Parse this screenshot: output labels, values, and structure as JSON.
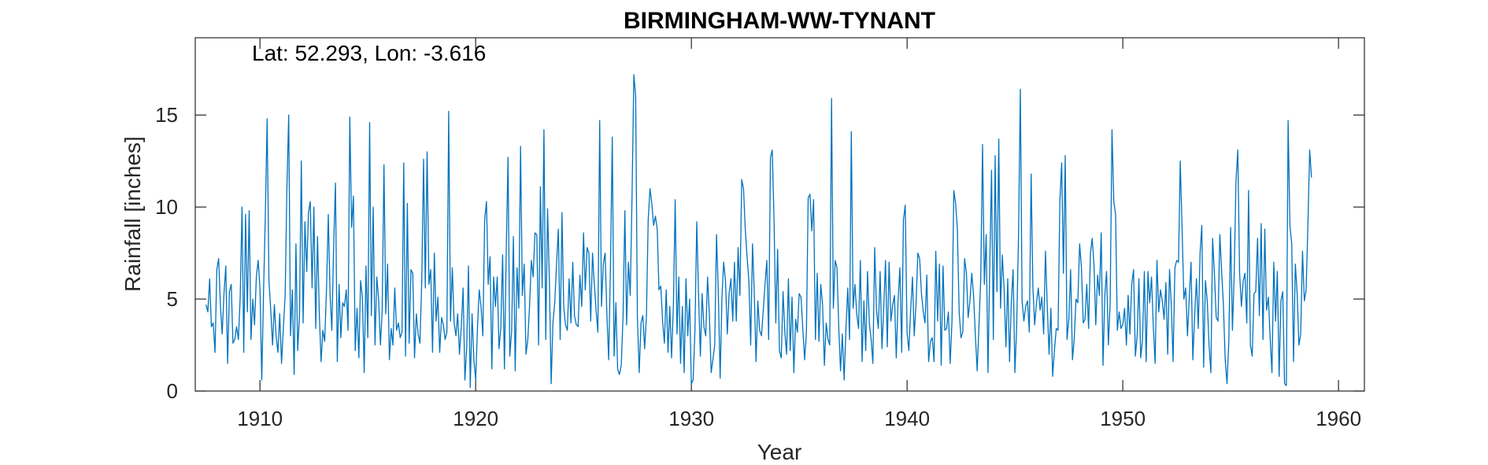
{
  "chart_data": {
    "type": "line",
    "title": "BIRMINGHAM-WW-TYNANT",
    "annotation": "Lat: 52.293, Lon: -3.616",
    "xlabel": "Year",
    "ylabel": "Rainfall [inches]",
    "xlim": [
      1907.0,
      1961.2
    ],
    "ylim": [
      0,
      19.2
    ],
    "x_ticks": [
      1910,
      1920,
      1930,
      1940,
      1950,
      1960
    ],
    "y_ticks": [
      0,
      5,
      10,
      15
    ],
    "grid": false,
    "line_color": "#0072BD",
    "series": [
      {
        "x_start": 1907.5,
        "x_step": 0.08333,
        "values": [
          4.7,
          4.3,
          6.1,
          3.5,
          3.7,
          2.1,
          6.6,
          7.2,
          4.6,
          3.1,
          5.3,
          6.8,
          1.5,
          5.4,
          5.8,
          2.6,
          2.8,
          3.5,
          2.8,
          5.1,
          10.0,
          2.1,
          9.6,
          4.3,
          9.8,
          2.8,
          5.0,
          3.6,
          6.2,
          7.1,
          5.6,
          0.6,
          5.5,
          9.5,
          14.8,
          6.0,
          4.4,
          2.5,
          4.7,
          3.0,
          2.1,
          4.2,
          1.5,
          3.4,
          5.2,
          11.0,
          15.0,
          3.0,
          5.5,
          0.9,
          8.0,
          2.2,
          4.1,
          12.5,
          3.7,
          9.2,
          6.5,
          9.7,
          10.3,
          5.6,
          10.0,
          3.4,
          8.4,
          4.3,
          1.6,
          3.3,
          2.7,
          5.5,
          9.6,
          5.3,
          3.3,
          7.9,
          11.3,
          1.6,
          5.8,
          2.9,
          4.8,
          4.6,
          5.5,
          3.3,
          14.9,
          8.9,
          10.6,
          2.2,
          4.5,
          1.8,
          6.0,
          5.1,
          1.0,
          6.8,
          2.9,
          14.6,
          4.1,
          10.0,
          2.5,
          6.2,
          5.0,
          2.5,
          4.3,
          12.3,
          4.2,
          6.9,
          1.7,
          3.4,
          2.5,
          5.6,
          3.3,
          3.7,
          2.9,
          3.2,
          12.4,
          1.9,
          10.2,
          2.6,
          6.6,
          6.4,
          1.8,
          4.2,
          3.1,
          2.6,
          6.0,
          12.6,
          5.6,
          13.0,
          5.8,
          6.6,
          2.1,
          7.5,
          3.8,
          5.1,
          2.1,
          4.0,
          3.6,
          2.8,
          3.2,
          15.2,
          3.8,
          6.7,
          3.7,
          3.0,
          4.2,
          2.0,
          3.5,
          5.6,
          0.6,
          2.4,
          6.8,
          0.2,
          4.2,
          1.7,
          0.6,
          3.5,
          5.5,
          4.6,
          3.0,
          9.3,
          10.3,
          5.8,
          7.3,
          1.2,
          6.2,
          4.6,
          6.2,
          2.3,
          3.4,
          7.4,
          1.2,
          7.6,
          12.7,
          1.9,
          3.2,
          8.4,
          1.1,
          6.7,
          4.5,
          13.3,
          5.2,
          6.9,
          2.0,
          2.8,
          4.7,
          7.1,
          6.2,
          8.6,
          8.5,
          2.5,
          11.1,
          5.6,
          14.2,
          2.8,
          9.9,
          6.0,
          0.4,
          3.7,
          4.8,
          6.9,
          8.8,
          2.8,
          9.7,
          4.6,
          3.6,
          3.3,
          6.1,
          3.7,
          7.0,
          4.1,
          3.6,
          3.5,
          6.3,
          4.6,
          8.6,
          5.5,
          7.8,
          7.5,
          3.8,
          7.5,
          5.8,
          4.4,
          3.2,
          14.7,
          4.6,
          6.9,
          7.5,
          4.2,
          1.7,
          6.8,
          13.8,
          1.9,
          4.8,
          1.2,
          0.9,
          1.4,
          4.1,
          9.8,
          3.6,
          7.0,
          5.2,
          10.6,
          17.2,
          16.0,
          4.0,
          1.0,
          3.7,
          4.1,
          2.3,
          4.1,
          9.3,
          11.0,
          10.2,
          9.0,
          9.5,
          8.8,
          5.5,
          5.7,
          3.8,
          2.6,
          5.5,
          2.1,
          4.6,
          1.8,
          4.6,
          10.4,
          3.1,
          6.2,
          1.5,
          4.6,
          1.0,
          6.1,
          3.0,
          5.0,
          0.4,
          0.6,
          3.3,
          9.2,
          5.2,
          1.9,
          5.3,
          3.5,
          3.0,
          6.2,
          4.2,
          1.0,
          1.7,
          2.5,
          8.5,
          5.3,
          0.7,
          5.1,
          7.0,
          6.0,
          3.1,
          5.3,
          6.1,
          3.8,
          7.0,
          3.8,
          7.8,
          5.2,
          11.5,
          11.0,
          8.8,
          7.3,
          6.0,
          2.5,
          8.0,
          5.3,
          1.6,
          4.9,
          3.3,
          3.0,
          4.4,
          5.8,
          7.1,
          2.8,
          12.7,
          13.1,
          9.2,
          3.7,
          7.7,
          2.2,
          1.8,
          5.4,
          3.2,
          2.0,
          6.1,
          2.2,
          5.1,
          1.0,
          3.9,
          3.2,
          5.3,
          5.1,
          3.4,
          1.7,
          3.2,
          10.5,
          10.7,
          8.7,
          10.4,
          2.8,
          6.4,
          2.7,
          5.8,
          4.7,
          1.4,
          3.7,
          2.8,
          2.5,
          15.9,
          4.5,
          7.1,
          6.7,
          3.4,
          1.1,
          3.1,
          0.6,
          3.4,
          5.6,
          2.8,
          14.1,
          4.5,
          5.8,
          4.2,
          3.4,
          7.1,
          1.6,
          4.9,
          2.2,
          6.5,
          3.7,
          2.8,
          1.5,
          7.8,
          4.4,
          3.4,
          6.5,
          2.3,
          4.4,
          7.1,
          2.4,
          7.0,
          3.8,
          4.7,
          5.2,
          1.8,
          4.9,
          6.7,
          2.1,
          9.3,
          10.1,
          3.2,
          2.2,
          4.4,
          6.2,
          3.0,
          4.7,
          7.5,
          7.2,
          5.3,
          4.3,
          3.7,
          6.3,
          1.6,
          2.7,
          2.9,
          1.6,
          7.6,
          3.8,
          6.9,
          1.4,
          6.8,
          3.3,
          3.4,
          4.3,
          1.5,
          3.8,
          10.9,
          10.2,
          8.8,
          4.3,
          2.9,
          3.2,
          7.2,
          6.4,
          4.0,
          4.9,
          6.4,
          5.2,
          3.0,
          1.1,
          3.5,
          6.1,
          13.4,
          5.8,
          8.5,
          1.0,
          6.6,
          12.0,
          2.8,
          12.8,
          5.4,
          13.7,
          4.5,
          7.4,
          5.5,
          2.4,
          6.1,
          1.6,
          4.8,
          6.6,
          1.0,
          3.6,
          8.5,
          16.4,
          4.9,
          3.8,
          4.6,
          4.9,
          3.2,
          11.8,
          5.7,
          3.6,
          4.8,
          5.6,
          4.4,
          5.1,
          3.1,
          7.6,
          4.6,
          2.0,
          4.5,
          0.8,
          2.2,
          3.4,
          3.3,
          10.3,
          12.4,
          6.4,
          12.8,
          2.8,
          3.9,
          6.6,
          1.7,
          2.8,
          5.0,
          4.8,
          8.0,
          6.7,
          3.7,
          3.9,
          5.8,
          3.4,
          7.5,
          8.3,
          6.8,
          3.6,
          6.3,
          5.2,
          8.6,
          1.4,
          5.2,
          6.5,
          2.5,
          4.8,
          14.2,
          10.3,
          9.6,
          3.3,
          4.3,
          3.4,
          3.6,
          4.5,
          2.5,
          5.2,
          3.1,
          5.8,
          6.6,
          1.9,
          3.0,
          6.1,
          1.8,
          2.8,
          6.5,
          1.6,
          6.5,
          4.8,
          6.2,
          3.5,
          1.5,
          7.1,
          4.3,
          5.5,
          4.9,
          3.9,
          5.9,
          2.0,
          6.6,
          4.7,
          1.6,
          6.7,
          7.1,
          7.0,
          12.5,
          8.9,
          5.0,
          5.6,
          3.0,
          5.1,
          7.0,
          1.7,
          4.1,
          6.1,
          3.4,
          7.5,
          9.0,
          1.3,
          6.0,
          4.9,
          2.5,
          1.0,
          8.3,
          6.4,
          4.0,
          3.8,
          8.5,
          6.5,
          4.7,
          1.7,
          0.4,
          2.7,
          8.9,
          3.3,
          6.3,
          11.4,
          13.1,
          6.4,
          4.6,
          6.0,
          6.4,
          3.7,
          10.9,
          2.5,
          1.9,
          5.3,
          5.4,
          8.3,
          4.1,
          9.1,
          2.8,
          8.8,
          4.4,
          5.1,
          2.9,
          1.0,
          7.0,
          3.8,
          6.5,
          0.8,
          4.9,
          5.4,
          0.4,
          0.3,
          14.7,
          9.0,
          8.0,
          1.6,
          6.9,
          5.3,
          2.5,
          3.1,
          7.6,
          4.9,
          5.5,
          9.1,
          13.1,
          11.6
        ]
      }
    ]
  }
}
